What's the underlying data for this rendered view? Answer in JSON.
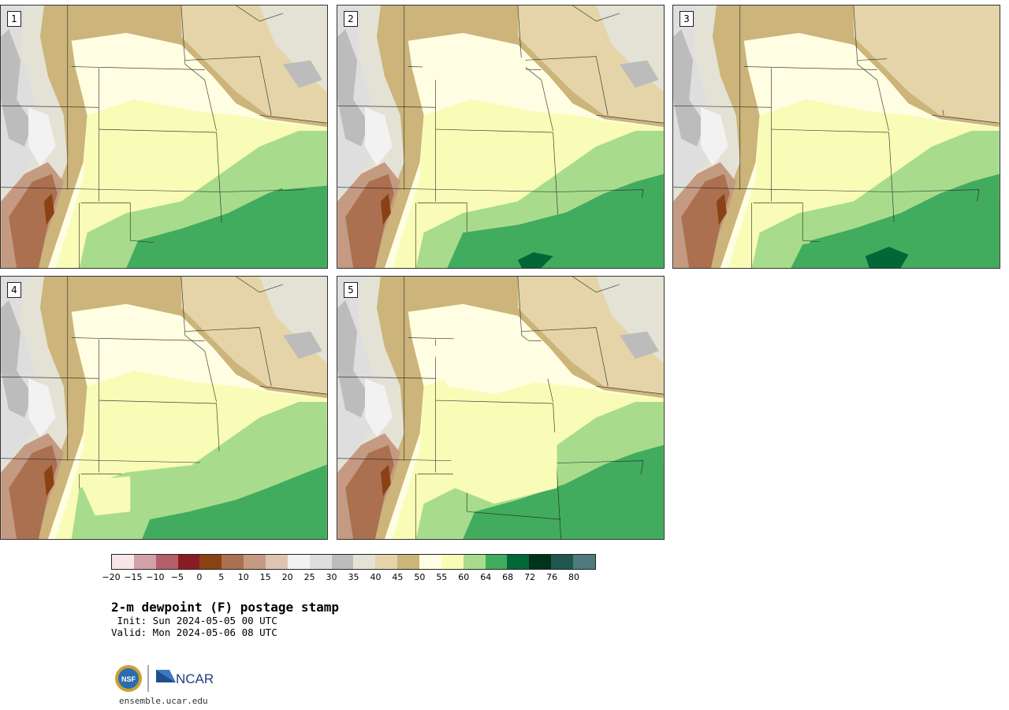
{
  "panels": [
    {
      "label": "1"
    },
    {
      "label": "2"
    },
    {
      "label": "3"
    },
    {
      "label": "4"
    },
    {
      "label": "5"
    }
  ],
  "colorbar": {
    "colors": [
      "#f6e6e8",
      "#d4a0a8",
      "#b46068",
      "#8a1c24",
      "#8a4214",
      "#aa7050",
      "#c49a82",
      "#e0c4b2",
      "#f2f2f2",
      "#dedede",
      "#bcbcbc",
      "#e4e2d4",
      "#e4d4a8",
      "#ccb47a",
      "#fffee2",
      "#f8fcb6",
      "#a8dc8c",
      "#42ac5e",
      "#006836",
      "#00321c",
      "#1e5650",
      "#507a7c"
    ],
    "ticks": [
      "−20",
      "−15",
      "−10",
      "−5",
      "0",
      "5",
      "10",
      "15",
      "20",
      "25",
      "30",
      "35",
      "40",
      "45",
      "50",
      "55",
      "60",
      "64",
      "68",
      "72",
      "76",
      "80"
    ]
  },
  "title": "2-m dewpoint (F) postage stamp",
  "init": " Init: Sun 2024-05-05 00 UTC",
  "valid": "Valid: Mon 2024-05-06 08 UTC",
  "logo": {
    "nsf": "NSF",
    "ncar": "NCAR"
  },
  "website": "ensemble.ucar.edu"
}
